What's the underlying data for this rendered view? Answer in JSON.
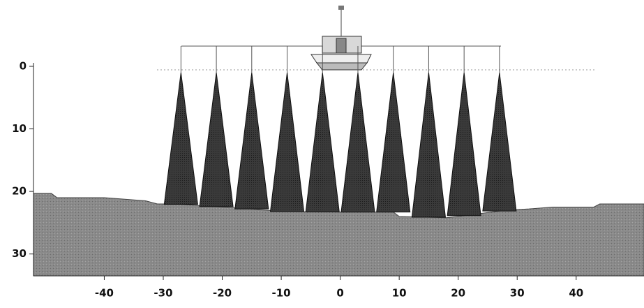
{
  "chart_data": {
    "type": "sonar",
    "xlim": [
      -52,
      51.5
    ],
    "ylim": [
      0,
      33.5
    ],
    "xticks": [
      -40,
      -30,
      -20,
      -10,
      0,
      10,
      20,
      30,
      40
    ],
    "yticks": [
      0,
      10,
      20,
      30
    ],
    "beams": [
      -27,
      -21,
      -15,
      -9,
      -3,
      3,
      9,
      15,
      21,
      27
    ],
    "seabed": {
      "x": [
        -52,
        -49,
        -48,
        -40,
        -33,
        -31,
        -28,
        -20,
        -15,
        -10,
        0,
        9,
        10,
        18,
        20,
        28,
        32,
        36,
        43,
        44,
        51.5
      ],
      "y": [
        20.3,
        20.3,
        21,
        21,
        21.5,
        22,
        22,
        22.5,
        22.8,
        23.2,
        23.3,
        23.3,
        24,
        24.2,
        24,
        23,
        22.8,
        22.5,
        22.5,
        22,
        22
      ]
    }
  }
}
